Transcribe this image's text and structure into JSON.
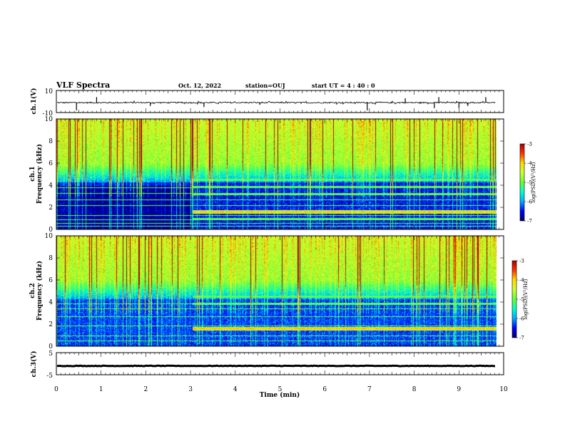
{
  "header": {
    "title": "VLF Spectra",
    "date": "Oct. 12, 2022",
    "station": "station=OUJ",
    "start": "start UT =  4 : 40 : 0"
  },
  "colors": {
    "colormap": [
      "#000066",
      "#0000ff",
      "#00aaff",
      "#00ffcc",
      "#66ff33",
      "#ccff33",
      "#ffdd00",
      "#ff3300",
      "#aa0000"
    ],
    "trace": "#000000"
  },
  "chart_data": [
    {
      "id": "ch1-waveform",
      "type": "line",
      "ylabel": "ch.1(V)",
      "ylim": [
        -10,
        10
      ],
      "yticks": [
        "10",
        "-10"
      ],
      "baseline": -1,
      "noise_amplitude": 0.6,
      "spikes_x_min": [
        0.45,
        0.9,
        2.1,
        3.3,
        4.55,
        6.95,
        7.8,
        8.45,
        8.55,
        9.0,
        9.2,
        9.6
      ],
      "spikes_y": [
        -8,
        4,
        -4,
        -5,
        -3,
        -8,
        3,
        -6,
        4,
        -6,
        -4,
        4
      ]
    },
    {
      "id": "ch1-spectrogram",
      "type": "heatmap",
      "ylabel": "ch.1\nFrequency (kHz)",
      "ylim": [
        0,
        10
      ],
      "yticks": [
        "0",
        "2",
        "4",
        "6",
        "8",
        "10"
      ],
      "colorbar": {
        "label": "log(PSD)(V²/Hz)",
        "ticks": [
          "-3",
          "-4",
          "-5",
          "-6",
          "-7"
        ],
        "range": [
          -7,
          -3
        ]
      },
      "regime_change_min": 3.05,
      "bands_after_change_khz": [
        1.0,
        1.6,
        4.5,
        3.9,
        3.2
      ],
      "lines_khz": [
        0.3,
        0.6,
        0.9,
        1.3,
        2.2,
        2.7,
        3.3,
        3.8
      ]
    },
    {
      "id": "ch2-spectrogram",
      "type": "heatmap",
      "ylabel": "ch.2\nFrequency (kHz)",
      "ylim": [
        0,
        10
      ],
      "yticks": [
        "0",
        "2",
        "4",
        "6",
        "8",
        "10"
      ],
      "colorbar": {
        "label": "log(PSD)(V²/Hz)",
        "ticks": [
          "-3",
          "-4",
          "-5",
          "-6",
          "-7"
        ],
        "range": [
          -7,
          -3
        ]
      },
      "regime_change_min": 3.05,
      "bands_after_change_khz": [
        1.6,
        4.5,
        3.9
      ],
      "lines_khz": [
        0.5,
        1.0,
        1.9,
        2.7,
        3.4,
        3.9
      ]
    },
    {
      "id": "ch3-waveform",
      "type": "line",
      "ylabel": "ch.3(V)",
      "ylim": [
        -5,
        5
      ],
      "yticks": [
        "5",
        "-5"
      ],
      "baseline": -1,
      "noise_amplitude": 0.25
    }
  ],
  "xaxis": {
    "label": "Time (min)",
    "xlim": [
      0,
      10
    ],
    "ticks": [
      "0",
      "1",
      "2",
      "3",
      "4",
      "5",
      "6",
      "7",
      "8",
      "9",
      "10"
    ],
    "data_end_min": 9.82
  }
}
